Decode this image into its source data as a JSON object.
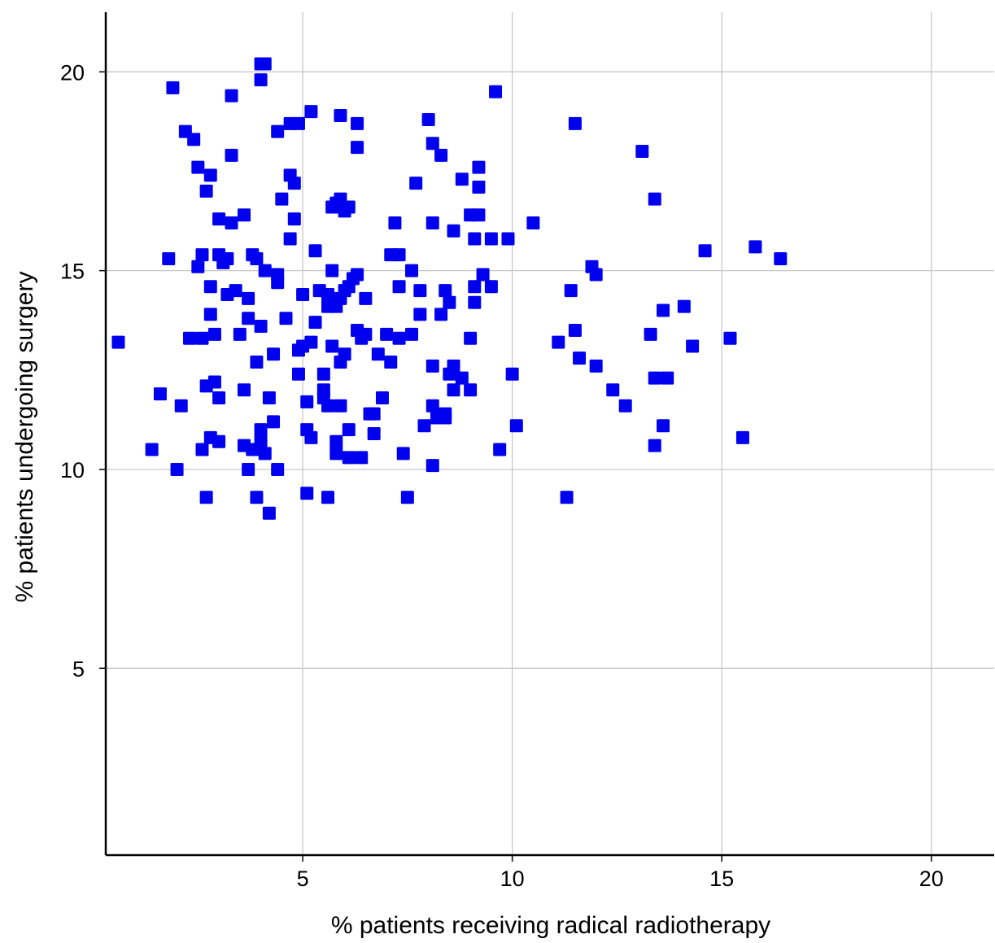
{
  "chart_data": {
    "type": "scatter",
    "title": "",
    "xlabel": "% patients receiving radical radiotherapy",
    "ylabel": "% patients undergoing surgery",
    "xlim": [
      0.3,
      21.5
    ],
    "ylim": [
      0.3,
      21.5
    ],
    "x_ticks": [
      5,
      10,
      15,
      20
    ],
    "y_ticks": [
      5,
      10,
      15,
      20
    ],
    "x_tick_labels": [
      "5",
      "10",
      "15",
      "20"
    ],
    "y_tick_labels": [
      "5",
      "10",
      "15",
      "20"
    ],
    "grid": true,
    "legend": false,
    "marker": "square",
    "marker_color": "#0000ee",
    "points": [
      [
        0.6,
        13.2
      ],
      [
        1.4,
        10.5
      ],
      [
        1.6,
        11.9
      ],
      [
        1.8,
        15.3
      ],
      [
        1.9,
        19.6
      ],
      [
        2.0,
        10.0
      ],
      [
        2.1,
        11.6
      ],
      [
        2.2,
        18.5
      ],
      [
        2.3,
        13.3
      ],
      [
        2.4,
        18.3
      ],
      [
        2.5,
        17.6
      ],
      [
        2.5,
        15.1
      ],
      [
        2.6,
        15.4
      ],
      [
        2.6,
        10.5
      ],
      [
        2.6,
        13.3
      ],
      [
        2.7,
        17.0
      ],
      [
        2.7,
        12.1
      ],
      [
        2.7,
        9.3
      ],
      [
        2.8,
        17.4
      ],
      [
        2.8,
        14.6
      ],
      [
        2.8,
        13.9
      ],
      [
        2.8,
        10.8
      ],
      [
        2.9,
        13.4
      ],
      [
        2.9,
        12.2
      ],
      [
        3.0,
        16.3
      ],
      [
        3.0,
        15.4
      ],
      [
        3.0,
        11.8
      ],
      [
        3.0,
        10.7
      ],
      [
        3.1,
        15.2
      ],
      [
        3.2,
        15.3
      ],
      [
        3.2,
        14.4
      ],
      [
        3.3,
        19.4
      ],
      [
        3.3,
        17.9
      ],
      [
        3.3,
        16.2
      ],
      [
        3.4,
        14.5
      ],
      [
        3.5,
        13.4
      ],
      [
        3.6,
        16.4
      ],
      [
        3.6,
        12.0
      ],
      [
        3.6,
        10.6
      ],
      [
        3.7,
        14.3
      ],
      [
        3.7,
        13.8
      ],
      [
        3.7,
        10.0
      ],
      [
        3.8,
        15.4
      ],
      [
        3.8,
        10.5
      ],
      [
        3.9,
        15.3
      ],
      [
        3.9,
        12.7
      ],
      [
        3.9,
        9.3
      ],
      [
        4.0,
        19.8
      ],
      [
        4.0,
        20.2
      ],
      [
        4.0,
        13.6
      ],
      [
        4.0,
        11.0
      ],
      [
        4.0,
        10.7
      ],
      [
        4.1,
        20.2
      ],
      [
        4.1,
        15.0
      ],
      [
        4.1,
        10.4
      ],
      [
        4.2,
        11.8
      ],
      [
        4.2,
        8.9
      ],
      [
        4.3,
        12.9
      ],
      [
        4.3,
        11.2
      ],
      [
        4.4,
        18.5
      ],
      [
        4.4,
        14.9
      ],
      [
        4.4,
        14.7
      ],
      [
        4.4,
        10.0
      ],
      [
        4.5,
        16.8
      ],
      [
        4.6,
        13.8
      ],
      [
        4.7,
        17.4
      ],
      [
        4.7,
        15.8
      ],
      [
        4.7,
        18.7
      ],
      [
        4.8,
        17.2
      ],
      [
        4.8,
        16.3
      ],
      [
        4.9,
        18.7
      ],
      [
        4.9,
        13.0
      ],
      [
        4.9,
        12.4
      ],
      [
        5.0,
        14.4
      ],
      [
        5.0,
        13.1
      ],
      [
        5.1,
        11.7
      ],
      [
        5.1,
        11.0
      ],
      [
        5.1,
        9.4
      ],
      [
        5.2,
        19.0
      ],
      [
        5.2,
        13.2
      ],
      [
        5.2,
        10.8
      ],
      [
        5.3,
        15.5
      ],
      [
        5.3,
        13.7
      ],
      [
        5.4,
        14.5
      ],
      [
        5.5,
        12.4
      ],
      [
        5.5,
        12.0
      ],
      [
        5.5,
        11.8
      ],
      [
        5.6,
        14.4
      ],
      [
        5.6,
        14.1
      ],
      [
        5.6,
        11.6
      ],
      [
        5.6,
        9.3
      ],
      [
        5.7,
        16.6
      ],
      [
        5.7,
        15.0
      ],
      [
        5.7,
        13.1
      ],
      [
        5.8,
        16.7
      ],
      [
        5.8,
        14.1
      ],
      [
        5.8,
        10.7
      ],
      [
        5.8,
        10.4
      ],
      [
        5.9,
        18.9
      ],
      [
        5.9,
        16.8
      ],
      [
        5.9,
        14.3
      ],
      [
        5.9,
        12.7
      ],
      [
        5.9,
        11.6
      ],
      [
        6.0,
        16.5
      ],
      [
        6.0,
        14.5
      ],
      [
        6.0,
        12.9
      ],
      [
        6.1,
        16.6
      ],
      [
        6.1,
        14.6
      ],
      [
        6.1,
        11.0
      ],
      [
        6.1,
        10.3
      ],
      [
        6.2,
        14.8
      ],
      [
        6.3,
        18.7
      ],
      [
        6.3,
        18.1
      ],
      [
        6.3,
        14.9
      ],
      [
        6.3,
        13.5
      ],
      [
        6.4,
        13.3
      ],
      [
        6.4,
        10.3
      ],
      [
        6.5,
        14.3
      ],
      [
        6.5,
        13.4
      ],
      [
        6.6,
        11.4
      ],
      [
        6.7,
        11.4
      ],
      [
        6.7,
        10.9
      ],
      [
        6.8,
        12.9
      ],
      [
        6.9,
        11.8
      ],
      [
        7.0,
        13.4
      ],
      [
        7.1,
        15.4
      ],
      [
        7.1,
        12.7
      ],
      [
        7.2,
        16.2
      ],
      [
        7.3,
        15.4
      ],
      [
        7.3,
        14.6
      ],
      [
        7.3,
        13.3
      ],
      [
        7.4,
        10.4
      ],
      [
        7.5,
        9.3
      ],
      [
        7.6,
        15.0
      ],
      [
        7.6,
        13.4
      ],
      [
        7.7,
        17.2
      ],
      [
        7.8,
        14.5
      ],
      [
        7.8,
        13.9
      ],
      [
        7.9,
        11.1
      ],
      [
        8.0,
        18.8
      ],
      [
        8.1,
        18.2
      ],
      [
        8.1,
        16.2
      ],
      [
        8.1,
        12.6
      ],
      [
        8.1,
        11.6
      ],
      [
        8.1,
        10.1
      ],
      [
        8.2,
        11.3
      ],
      [
        8.3,
        17.9
      ],
      [
        8.3,
        13.9
      ],
      [
        8.4,
        14.5
      ],
      [
        8.4,
        11.4
      ],
      [
        8.4,
        11.3
      ],
      [
        8.5,
        14.2
      ],
      [
        8.5,
        12.4
      ],
      [
        8.6,
        16.0
      ],
      [
        8.6,
        12.6
      ],
      [
        8.6,
        12.0
      ],
      [
        8.8,
        17.3
      ],
      [
        8.8,
        12.3
      ],
      [
        9.0,
        16.4
      ],
      [
        9.0,
        13.3
      ],
      [
        9.0,
        12.0
      ],
      [
        9.1,
        15.8
      ],
      [
        9.1,
        14.6
      ],
      [
        9.1,
        14.2
      ],
      [
        9.2,
        17.6
      ],
      [
        9.2,
        17.1
      ],
      [
        9.2,
        16.4
      ],
      [
        9.3,
        14.9
      ],
      [
        9.5,
        15.8
      ],
      [
        9.5,
        14.6
      ],
      [
        9.6,
        19.5
      ],
      [
        9.7,
        10.5
      ],
      [
        9.9,
        15.8
      ],
      [
        10.0,
        12.4
      ],
      [
        10.1,
        11.1
      ],
      [
        10.5,
        16.2
      ],
      [
        11.1,
        13.2
      ],
      [
        11.3,
        9.3
      ],
      [
        11.4,
        14.5
      ],
      [
        11.5,
        13.5
      ],
      [
        11.5,
        18.7
      ],
      [
        11.6,
        12.8
      ],
      [
        11.9,
        15.1
      ],
      [
        12.0,
        14.9
      ],
      [
        12.0,
        12.6
      ],
      [
        12.4,
        12.0
      ],
      [
        12.7,
        11.6
      ],
      [
        13.1,
        18.0
      ],
      [
        13.3,
        13.4
      ],
      [
        13.4,
        16.8
      ],
      [
        13.4,
        12.3
      ],
      [
        13.4,
        10.6
      ],
      [
        13.6,
        11.1
      ],
      [
        13.6,
        14.0
      ],
      [
        13.7,
        12.3
      ],
      [
        14.1,
        14.1
      ],
      [
        14.3,
        13.1
      ],
      [
        14.6,
        15.5
      ],
      [
        15.2,
        13.3
      ],
      [
        15.5,
        10.8
      ],
      [
        15.8,
        15.6
      ],
      [
        16.4,
        15.3
      ]
    ]
  }
}
